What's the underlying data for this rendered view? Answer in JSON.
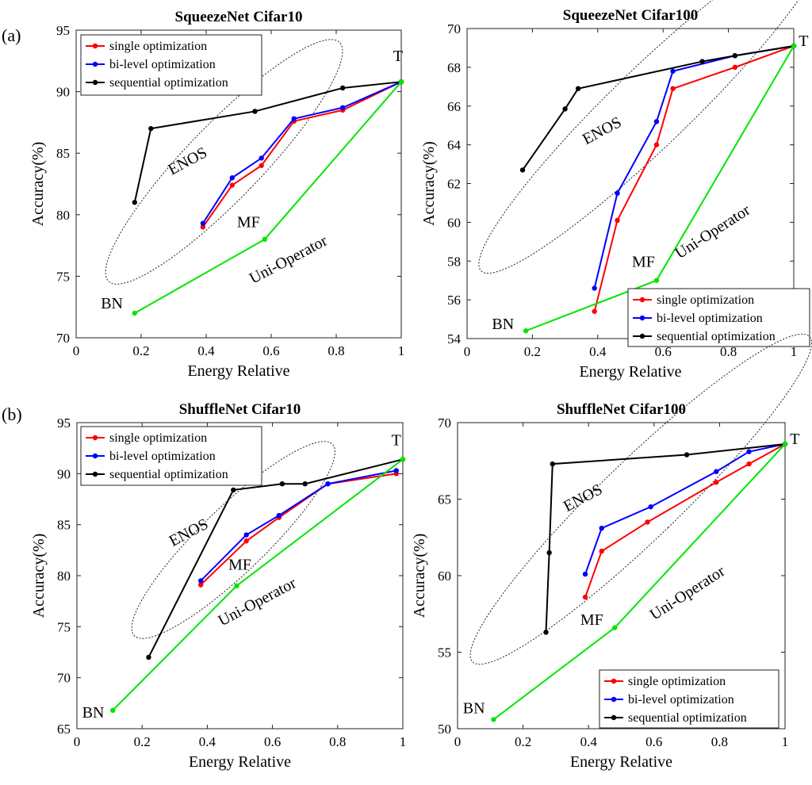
{
  "row_labels": [
    "(a)",
    "(b)"
  ],
  "chart_data": [
    {
      "type": "line",
      "title": "SqueezeNet Cifar10",
      "xlabel": "Energy Relative",
      "ylabel": "Accuracy(%)",
      "xlim": [
        0,
        1
      ],
      "ylim": [
        70,
        95
      ],
      "xticks": [
        "0",
        "0.2",
        "0.4",
        "0.6",
        "0.8",
        "1"
      ],
      "yticks": [
        "70",
        "75",
        "80",
        "85",
        "90",
        "95"
      ],
      "legend_position": "top-left",
      "series": [
        {
          "name": "single optimization",
          "color": "#ff0000",
          "x": [
            0.39,
            0.48,
            0.57,
            0.67,
            0.82,
            1.0
          ],
          "y": [
            79.0,
            82.4,
            84.0,
            87.6,
            88.5,
            90.8
          ]
        },
        {
          "name": "bi-level optimization",
          "color": "#0000ff",
          "x": [
            0.39,
            0.48,
            0.57,
            0.67,
            0.82,
            1.0
          ],
          "y": [
            79.3,
            83.0,
            84.6,
            87.8,
            88.7,
            90.8
          ]
        },
        {
          "name": "sequential optimization",
          "color": "#000000",
          "x": [
            0.18,
            0.23,
            0.55,
            0.82,
            1.0
          ],
          "y": [
            81.0,
            87.0,
            88.4,
            90.3,
            90.8
          ]
        },
        {
          "name": "",
          "color": "#00e600",
          "x": [
            0.18,
            0.58,
            1.0
          ],
          "y": [
            72.0,
            78.0,
            90.8
          ]
        }
      ],
      "annotations": [
        {
          "text": "T",
          "x": 0.99,
          "y": 92.5
        },
        {
          "text": "MF",
          "x": 0.53,
          "y": 79.0
        },
        {
          "text": "BN",
          "x": 0.11,
          "y": 72.4
        },
        {
          "text": "ENOS",
          "x": 0.35,
          "y": 84.0,
          "rotate": -28
        },
        {
          "text": "Uni-Operator",
          "x": 0.66,
          "y": 76.0,
          "rotate": -28
        }
      ],
      "ellipse": {
        "cx": 0.455,
        "cy": 84.3,
        "rx": 0.115,
        "ry": 0.75,
        "rotate": 44
      }
    },
    {
      "type": "line",
      "title": "SqueezeNet Cifar100",
      "xlabel": "Energy Relative",
      "ylabel": "Accuracy(%)",
      "xlim": [
        0,
        1
      ],
      "ylim": [
        54,
        70
      ],
      "xticks": [
        "0",
        "0.2",
        "0.4",
        "0.6",
        "0.8",
        "1"
      ],
      "yticks": [
        "54",
        "56",
        "58",
        "60",
        "62",
        "64",
        "66",
        "68",
        "70"
      ],
      "legend_position": "bottom-right",
      "series": [
        {
          "name": "single optimization",
          "color": "#ff0000",
          "x": [
            0.39,
            0.46,
            0.58,
            0.63,
            0.82,
            1.0
          ],
          "y": [
            55.4,
            60.1,
            64.0,
            66.9,
            68.0,
            69.1
          ]
        },
        {
          "name": "bi-level optimization",
          "color": "#0000ff",
          "x": [
            0.39,
            0.46,
            0.58,
            0.63,
            0.82,
            1.0
          ],
          "y": [
            56.6,
            61.5,
            65.2,
            67.8,
            68.6,
            69.1
          ]
        },
        {
          "name": "sequential optimization",
          "color": "#000000",
          "x": [
            0.17,
            0.3,
            0.34,
            0.72,
            0.82,
            1.0
          ],
          "y": [
            62.7,
            65.85,
            66.9,
            68.3,
            68.6,
            69.1
          ]
        },
        {
          "name": "",
          "color": "#00e600",
          "x": [
            0.18,
            0.58,
            1.0
          ],
          "y": [
            54.4,
            57.0,
            69.1
          ]
        }
      ],
      "annotations": [
        {
          "text": "T",
          "x": 1.03,
          "y": 69.1
        },
        {
          "text": "MF",
          "x": 0.54,
          "y": 57.7
        },
        {
          "text": "BN",
          "x": 0.11,
          "y": 54.5
        },
        {
          "text": "ENOS",
          "x": 0.42,
          "y": 64.5,
          "rotate": -28
        },
        {
          "text": "Uni-Operator",
          "x": 0.76,
          "y": 59.3,
          "rotate": -33
        }
      ],
      "ellipse": {
        "cx": 0.565,
        "cy": 66.0,
        "rx": 0.12,
        "ry": 0.68,
        "rotate": 46
      }
    },
    {
      "type": "line",
      "title": "ShuffleNet Cifar10",
      "xlabel": "Energy Relative",
      "ylabel": "Accuracy(%)",
      "xlim": [
        0,
        1
      ],
      "ylim": [
        65,
        95
      ],
      "xticks": [
        "0",
        "0.2",
        "0.4",
        "0.6",
        "0.8",
        "1"
      ],
      "yticks": [
        "65",
        "70",
        "75",
        "80",
        "85",
        "90",
        "95"
      ],
      "legend_position": "top-left",
      "series": [
        {
          "name": "single optimization",
          "color": "#ff0000",
          "x": [
            0.38,
            0.52,
            0.62,
            0.77,
            0.98
          ],
          "y": [
            79.1,
            83.4,
            85.7,
            89.0,
            90.0
          ]
        },
        {
          "name": "bi-level optimization",
          "color": "#0000ff",
          "x": [
            0.38,
            0.52,
            0.62,
            0.77,
            0.98
          ],
          "y": [
            79.5,
            84.0,
            85.9,
            89.0,
            90.3
          ]
        },
        {
          "name": "sequential optimization",
          "color": "#000000",
          "x": [
            0.22,
            0.48,
            0.63,
            0.7,
            1.0
          ],
          "y": [
            72.0,
            88.4,
            89.0,
            89.0,
            91.4
          ]
        },
        {
          "name": "",
          "color": "#00e600",
          "x": [
            0.11,
            0.49,
            1.0
          ],
          "y": [
            66.8,
            79.0,
            91.4
          ]
        }
      ],
      "annotations": [
        {
          "text": "T",
          "x": 0.98,
          "y": 92.8
        },
        {
          "text": "MF",
          "x": 0.5,
          "y": 80.6
        },
        {
          "text": "BN",
          "x": 0.05,
          "y": 66.1
        },
        {
          "text": "ENOS",
          "x": 0.35,
          "y": 83.8,
          "rotate": -28
        },
        {
          "text": "Uni-Operator",
          "x": 0.56,
          "y": 77.0,
          "rotate": -28
        }
      ],
      "ellipse": {
        "cx": 0.48,
        "cy": 83.5,
        "rx": 0.1,
        "ry": 0.75,
        "rotate": 46
      }
    },
    {
      "type": "line",
      "title": "ShuffleNet Cifar100",
      "xlabel": "Energy Relative",
      "ylabel": "Accuracy(%)",
      "xlim": [
        0,
        1
      ],
      "ylim": [
        50,
        70
      ],
      "xticks": [
        "0",
        "0.2",
        "0.4",
        "0.6",
        "0.8",
        "1"
      ],
      "yticks": [
        "50",
        "55",
        "60",
        "65",
        "70"
      ],
      "legend_position": "bottom-right",
      "series": [
        {
          "name": "single optimization",
          "color": "#ff0000",
          "x": [
            0.39,
            0.44,
            0.58,
            0.79,
            0.89,
            1.0
          ],
          "y": [
            58.6,
            61.6,
            63.5,
            66.1,
            67.3,
            68.6
          ]
        },
        {
          "name": "bi-level optimization",
          "color": "#0000ff",
          "x": [
            0.39,
            0.44,
            0.59,
            0.79,
            0.89,
            1.0
          ],
          "y": [
            60.1,
            63.1,
            64.5,
            66.8,
            68.1,
            68.6
          ]
        },
        {
          "name": "sequential optimization",
          "color": "#000000",
          "x": [
            0.27,
            0.28,
            0.29,
            0.7,
            1.0
          ],
          "y": [
            56.3,
            61.5,
            67.3,
            67.9,
            68.6
          ]
        },
        {
          "name": "",
          "color": "#00e600",
          "x": [
            0.11,
            0.48,
            1.0
          ],
          "y": [
            50.6,
            56.6,
            68.6
          ]
        }
      ],
      "annotations": [
        {
          "text": "T",
          "x": 1.03,
          "y": 68.6
        },
        {
          "text": "MF",
          "x": 0.41,
          "y": 56.8
        },
        {
          "text": "BN",
          "x": 0.05,
          "y": 51.0
        },
        {
          "text": "ENOS",
          "x": 0.39,
          "y": 64.8,
          "rotate": -28
        },
        {
          "text": "Uni-Operator",
          "x": 0.71,
          "y": 58.6,
          "rotate": -33
        }
      ],
      "ellipse": {
        "cx": 0.56,
        "cy": 65.0,
        "rx": 0.12,
        "ry": 0.85,
        "rotate": 46
      }
    }
  ]
}
